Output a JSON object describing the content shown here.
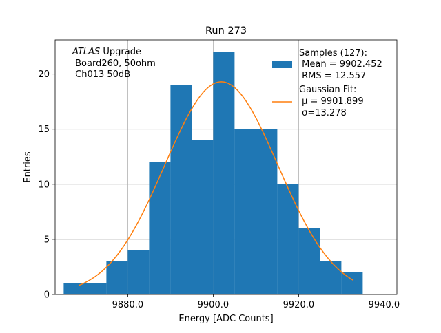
{
  "chart_data": {
    "type": "bar",
    "title": "Run 273",
    "xlabel": "Energy [ADC Counts]",
    "ylabel": "Entries",
    "xlim": [
      9863,
      9943
    ],
    "ylim": [
      0,
      23.1
    ],
    "grid": true,
    "x_ticks": [
      9880,
      9900,
      9920,
      9940
    ],
    "x_tick_labels": [
      "9880.0",
      "9900.0",
      "9920.0",
      "9940.0"
    ],
    "y_ticks": [
      0,
      5,
      10,
      15,
      20
    ],
    "y_tick_labels": [
      "0",
      "5",
      "10",
      "15",
      "20"
    ],
    "bin_edges": [
      9865,
      9870,
      9875,
      9880,
      9885,
      9890,
      9895,
      9900,
      9905,
      9910,
      9915,
      9920,
      9925,
      9930,
      9935
    ],
    "counts": [
      1,
      1,
      3,
      4,
      12,
      19,
      14,
      22,
      15,
      15,
      10,
      6,
      3,
      2
    ],
    "histogram_color": "#1f77b4",
    "fit": {
      "type": "gaussian",
      "mu": 9901.899,
      "sigma": 13.278,
      "amplitude": 19.3,
      "x_range": [
        9868.5,
        9932.8
      ],
      "color": "#ff7f0e"
    },
    "annotation": {
      "line1_italic": "ATLAS",
      "line1_rest": " Upgrade",
      "line2": " Board260, 50ohm",
      "line3": " Ch013 50dB"
    },
    "legend": {
      "placement": "top-right",
      "entries": [
        {
          "name": "Samples (127):",
          "lines": [
            " Mean = 9902.452",
            " RMS = 12.557"
          ],
          "marker": "patch"
        },
        {
          "name": "Gaussian Fit:",
          "lines": [
            " μ = 9901.899",
            " σ=13.278"
          ],
          "marker": "line"
        }
      ]
    }
  }
}
